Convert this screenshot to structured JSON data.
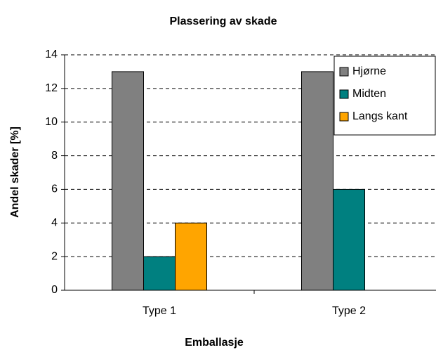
{
  "chart_data": {
    "type": "bar",
    "title": "Plassering av skade",
    "x_label": "Emballasje",
    "y_label": "Andel skader [%]",
    "categories": [
      "Type 1",
      "Type 2"
    ],
    "series": [
      {
        "name": "Hjørne",
        "color": "#808080",
        "values": [
          13,
          13
        ]
      },
      {
        "name": "Midten",
        "color": "#008080",
        "values": [
          2,
          6
        ]
      },
      {
        "name": "Langs kant",
        "color": "#ffa500",
        "values": [
          4,
          0
        ]
      }
    ],
    "ylim": [
      0,
      14
    ],
    "yticks": [
      0,
      2,
      4,
      6,
      8,
      10,
      12,
      14
    ],
    "grid": true,
    "legend": "upper right"
  }
}
